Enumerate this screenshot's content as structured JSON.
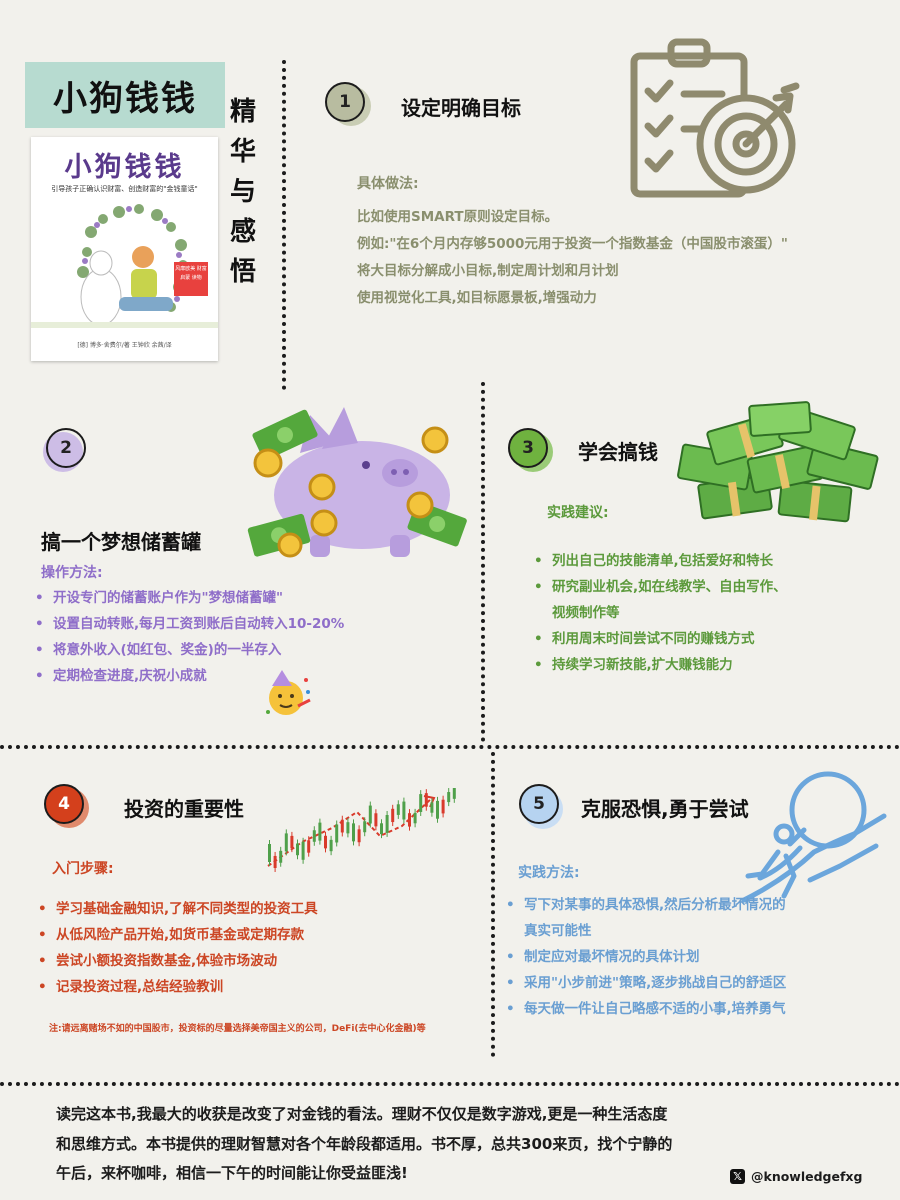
{
  "header": {
    "title": "小狗钱钱",
    "vertical_title": [
      "精",
      "华",
      "与",
      "感",
      "悟"
    ]
  },
  "cover": {
    "title": "小狗钱钱",
    "subtitle": "引导孩子正确认识财富、创造财富的\"金钱童话\"",
    "sticker": "风靡欧美 财富启蒙 读物",
    "author": "[德] 博多·舍费尔/著   王钟欣 余茜/译"
  },
  "s1": {
    "num": "1",
    "title": "设定明确目标",
    "sub": "具体做法:",
    "lines": [
      "比如使用SMART原则设定目标。",
      "例如:\"在6个月内存够5000元用于投资一个指数基金（中国股市滚蛋）\"",
      "将大目标分解成小目标,制定周计划和月计划",
      "使用视觉化工具,如目标愿景板,增强动力"
    ]
  },
  "s2": {
    "num": "2",
    "title": "搞一个梦想储蓄罐",
    "sub": "操作方法:",
    "items": [
      "开设专门的储蓄账户作为\"梦想储蓄罐\"",
      "设置自动转账,每月工资到账后自动转入10-20%",
      "将意外收入(如红包、奖金)的一半存入",
      "定期检查进度,庆祝小成就"
    ]
  },
  "s3": {
    "num": "3",
    "title": "学会搞钱",
    "sub": "实践建议:",
    "items": [
      "列出自己的技能清单,包括爱好和特长",
      "研究副业机会,如在线教学、自由写作、",
      "利用周末时间尝试不同的赚钱方式",
      "持续学习新技能,扩大赚钱能力"
    ],
    "item2_cont": "视频制作等"
  },
  "s4": {
    "num": "4",
    "title": "投资的重要性",
    "sub": "入门步骤:",
    "items": [
      "学习基础金融知识,了解不同类型的投资工具",
      "从低风险产品开始,如货币基金或定期存款",
      "尝试小额投资指数基金,体验市场波动",
      "记录投资过程,总结经验教训"
    ],
    "note": "注:请远离赌场不如的中国股市，投资标的尽量选择美帝国主义的公司，DeFi(去中心化金融)等"
  },
  "s5": {
    "num": "5",
    "title": "克服恐惧,勇于尝试",
    "sub": "实践方法:",
    "items": [
      "写下对某事的具体恐惧,然后分析最坏情况的",
      "制定应对最坏情况的具体计划",
      "采用\"小步前进\"策略,逐步挑战自己的舒适区",
      "每天做一件让自己略感不适的小事,培养勇气"
    ],
    "item1_cont": "真实可能性"
  },
  "footer": {
    "lines": [
      "读完这本书,我最大的收获是改变了对金钱的看法。理财不仅仅是数字游戏,更是一种生活态度",
      "和思维方式。本书提供的理财智慧对各个年龄段都适用。书不厚，总共300来页，找个宁静的",
      "午后，来杯咖啡，相信一下午的时间能让你受益匪浅!"
    ],
    "handle": "@knowledgefxg",
    "x_glyph": "𝕏"
  },
  "colors": {
    "background": "#f2f1ec",
    "title_box": "#b7dbd0",
    "s1": "#8a8f6e",
    "s2": "#8f6ec9",
    "s3": "#5c9a3c",
    "s4": "#cc4624",
    "s5": "#6a9fd2"
  },
  "icons": [
    "clipboard-target-icon",
    "piggy-bank-icon",
    "money-stack-icon",
    "party-face-icon",
    "candlestick-chart-icon",
    "boulder-climber-icon"
  ]
}
